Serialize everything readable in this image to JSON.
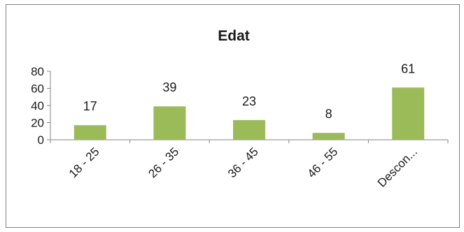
{
  "chart_data": {
    "type": "bar",
    "title": "Edat",
    "categories": [
      "18 - 25",
      "26 - 35",
      "36 - 45",
      "46 - 55",
      "Descon..."
    ],
    "values": [
      17,
      39,
      23,
      8,
      61
    ],
    "ylim": [
      0,
      80
    ],
    "yticks": [
      "0",
      "20",
      "40",
      "60",
      "80"
    ],
    "grid": false,
    "legend": "none",
    "bar_color": "#9bbb59"
  }
}
